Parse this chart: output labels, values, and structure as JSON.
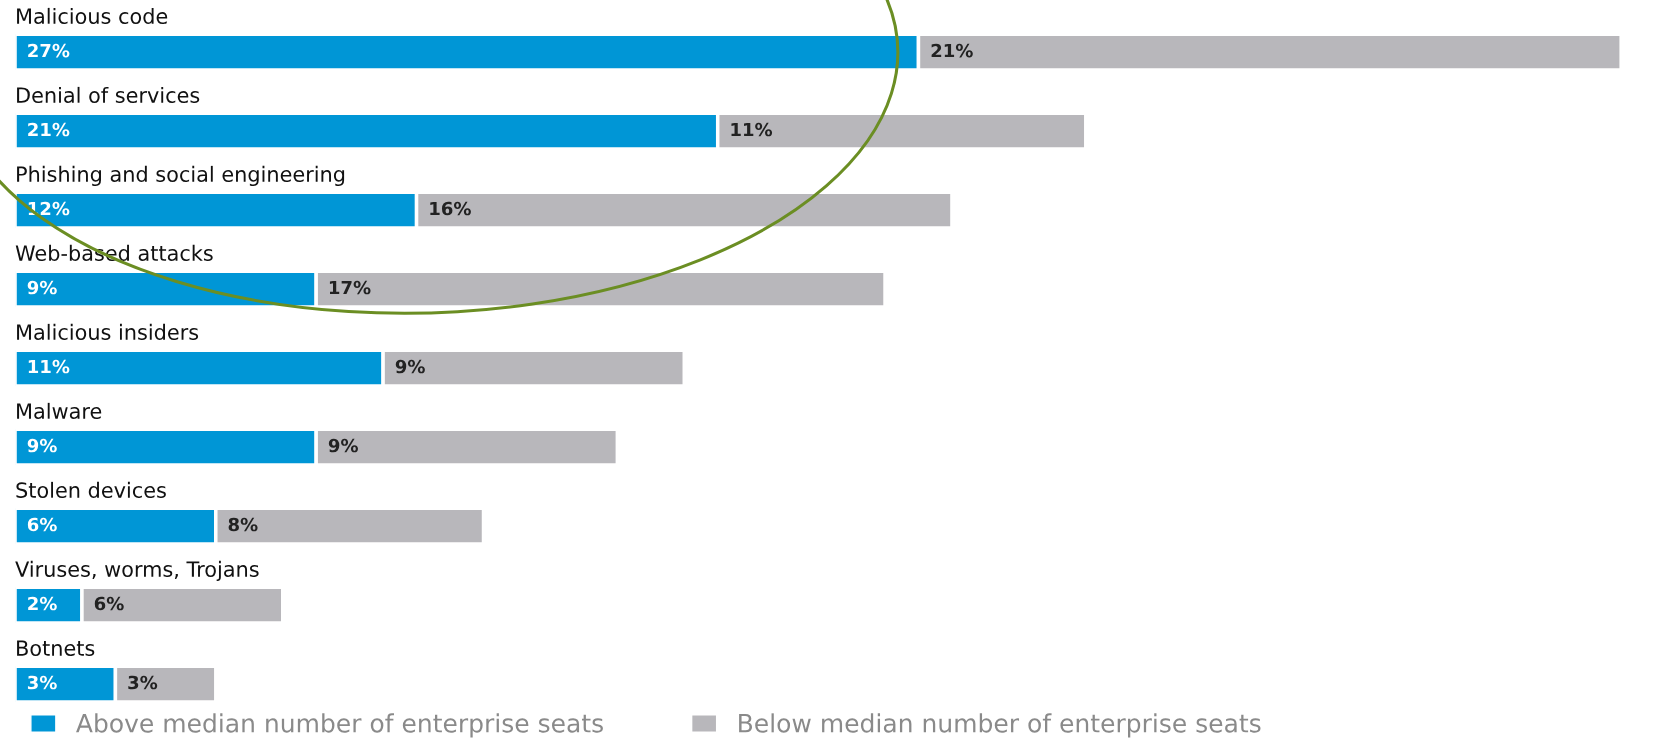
{
  "chart_data": {
    "type": "bar",
    "orientation": "horizontal",
    "stacked": true,
    "legend": "bottom",
    "categories": [
      "Malicious code",
      "Denial of services",
      "Phishing and social engineering",
      "Web-based attacks",
      "Malicious insiders",
      "Malware",
      "Stolen devices",
      "Viruses, worms, Trojans",
      "Botnets"
    ],
    "series": [
      {
        "name": "Above median number of enterprise seats",
        "color": "#0096d6",
        "values": [
          27,
          21,
          12,
          9,
          11,
          9,
          6,
          2,
          3
        ],
        "value_labels": [
          "27%",
          "21%",
          "12%",
          "9%",
          "11%",
          "9%",
          "6%",
          "2%",
          "3%"
        ]
      },
      {
        "name": "Below median number of enterprise seats",
        "color": "#b8b7bb",
        "values": [
          21,
          11,
          16,
          17,
          9,
          9,
          8,
          6,
          3
        ],
        "value_labels": [
          "21%",
          "11%",
          "16%",
          "17%",
          "9%",
          "9%",
          "8%",
          "6%",
          "3%"
        ]
      }
    ]
  }
}
